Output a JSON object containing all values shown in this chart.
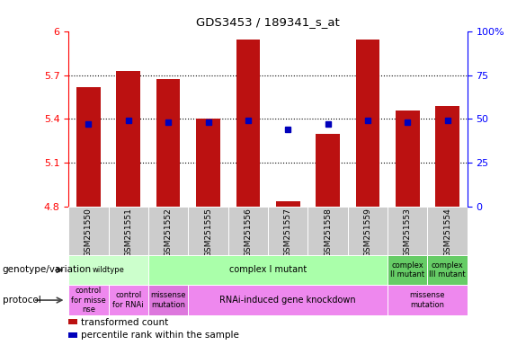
{
  "title": "GDS3453 / 189341_s_at",
  "samples": [
    "GSM251550",
    "GSM251551",
    "GSM251552",
    "GSM251555",
    "GSM251556",
    "GSM251557",
    "GSM251558",
    "GSM251559",
    "GSM251553",
    "GSM251554"
  ],
  "transformed_count": [
    5.62,
    5.73,
    5.67,
    5.4,
    5.94,
    4.84,
    5.3,
    5.94,
    5.46,
    5.49
  ],
  "percentile_rank": [
    47,
    49,
    48,
    48,
    49,
    44,
    47,
    49,
    48,
    49
  ],
  "ylim": [
    4.8,
    6.0
  ],
  "yticks": [
    4.8,
    5.1,
    5.4,
    5.7,
    6.0
  ],
  "ytick_labels": [
    "4.8",
    "5.1",
    "5.4",
    "5.7",
    "6"
  ],
  "y2lim": [
    0,
    100
  ],
  "y2ticks": [
    0,
    25,
    50,
    75,
    100
  ],
  "y2tick_labels": [
    "0",
    "25",
    "50",
    "75",
    "100%"
  ],
  "bar_color": "#bb1111",
  "dot_color": "#0000bb",
  "bar_width": 0.6,
  "hline_y": [
    5.1,
    5.4,
    5.7
  ],
  "genotype_row": [
    {
      "label": "wildtype",
      "span": [
        0,
        2
      ],
      "color": "#ccffcc"
    },
    {
      "label": "complex I mutant",
      "span": [
        2,
        8
      ],
      "color": "#aaffaa"
    },
    {
      "label": "complex\nII mutant",
      "span": [
        8,
        9
      ],
      "color": "#66cc66"
    },
    {
      "label": "complex\nIII mutant",
      "span": [
        9,
        10
      ],
      "color": "#66cc66"
    }
  ],
  "protocol_row": [
    {
      "label": "control\nfor misse\nnse",
      "span": [
        0,
        1
      ],
      "color": "#ee88ee"
    },
    {
      "label": "control\nfor RNAi",
      "span": [
        1,
        2
      ],
      "color": "#ee88ee"
    },
    {
      "label": "missense\nmutation",
      "span": [
        2,
        3
      ],
      "color": "#dd77dd"
    },
    {
      "label": "RNAi-induced gene knockdown",
      "span": [
        3,
        8
      ],
      "color": "#ee88ee"
    },
    {
      "label": "missense\nmutation",
      "span": [
        8,
        10
      ],
      "color": "#ee88ee"
    }
  ],
  "left_labels": [
    "genotype/variation",
    "protocol"
  ],
  "legend_items": [
    {
      "color": "#bb1111",
      "label": "transformed count"
    },
    {
      "color": "#0000bb",
      "label": "percentile rank within the sample"
    }
  ],
  "sample_bg_color": "#cccccc",
  "chart_bg_color": "#ffffff",
  "spine_color": "#888888"
}
